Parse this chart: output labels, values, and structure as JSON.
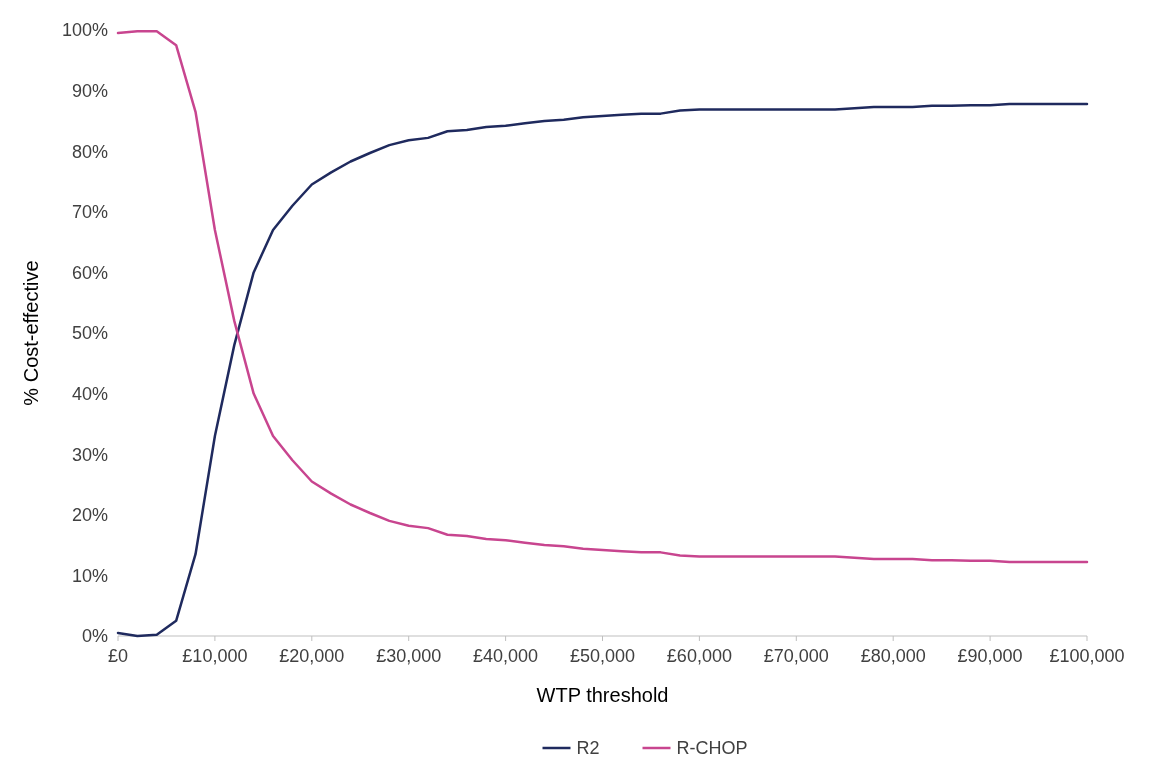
{
  "chart_data": {
    "type": "line",
    "xlabel": "WTP threshold",
    "ylabel": "% Cost-effective",
    "x": [
      0,
      2000,
      4000,
      6000,
      8000,
      10000,
      12000,
      14000,
      16000,
      18000,
      20000,
      22000,
      24000,
      26000,
      28000,
      30000,
      32000,
      34000,
      36000,
      38000,
      40000,
      42000,
      44000,
      46000,
      48000,
      50000,
      52000,
      54000,
      56000,
      58000,
      60000,
      62000,
      64000,
      66000,
      68000,
      70000,
      72000,
      74000,
      76000,
      78000,
      80000,
      82000,
      84000,
      86000,
      88000,
      90000,
      92000,
      94000,
      96000,
      98000,
      100000
    ],
    "series": [
      {
        "name": "R2",
        "color": "#1f2a5e",
        "values": [
          0.5,
          0,
          0.2,
          2.5,
          13.5,
          33,
          48,
          60,
          67,
          71,
          74.5,
          76.5,
          78.3,
          79.7,
          81,
          81.8,
          82.2,
          83.3,
          83.5,
          84,
          84.2,
          84.6,
          85,
          85.2,
          85.6,
          85.8,
          86,
          86.2,
          86.2,
          86.7,
          86.9,
          86.9,
          86.9,
          86.9,
          86.9,
          86.9,
          86.9,
          86.9,
          87.1,
          87.3,
          87.3,
          87.3,
          87.5,
          87.5,
          87.6,
          87.6,
          87.8,
          87.8,
          87.8,
          87.8,
          87.8
        ]
      },
      {
        "name": "R-CHOP",
        "color": "#c8458f",
        "values": [
          99.5,
          99.8,
          99.8,
          97.5,
          86.5,
          67,
          52,
          40,
          33,
          29,
          25.5,
          23.5,
          21.7,
          20.3,
          19,
          18.2,
          17.8,
          16.7,
          16.5,
          16,
          15.8,
          15.4,
          15,
          14.8,
          14.4,
          14.2,
          14,
          13.8,
          13.8,
          13.3,
          13.1,
          13.1,
          13.1,
          13.1,
          13.1,
          13.1,
          13.1,
          13.1,
          12.9,
          12.7,
          12.7,
          12.7,
          12.5,
          12.5,
          12.4,
          12.4,
          12.2,
          12.2,
          12.2,
          12.2,
          12.2
        ]
      }
    ],
    "xlim": [
      0,
      100000
    ],
    "xticks": [
      {
        "value": 0,
        "label": "£0"
      },
      {
        "value": 10000,
        "label": "£10,000"
      },
      {
        "value": 20000,
        "label": "£20,000"
      },
      {
        "value": 30000,
        "label": "£30,000"
      },
      {
        "value": 40000,
        "label": "£40,000"
      },
      {
        "value": 50000,
        "label": "£50,000"
      },
      {
        "value": 60000,
        "label": "£60,000"
      },
      {
        "value": 70000,
        "label": "£70,000"
      },
      {
        "value": 80000,
        "label": "£80,000"
      },
      {
        "value": 90000,
        "label": "£90,000"
      },
      {
        "value": 100000,
        "label": "£100,000"
      }
    ],
    "ylim": [
      0,
      100
    ],
    "yticks": [
      {
        "value": 0,
        "label": "0%"
      },
      {
        "value": 10,
        "label": "10%"
      },
      {
        "value": 20,
        "label": "20%"
      },
      {
        "value": 30,
        "label": "30%"
      },
      {
        "value": 40,
        "label": "40%"
      },
      {
        "value": 50,
        "label": "50%"
      },
      {
        "value": 60,
        "label": "60%"
      },
      {
        "value": 70,
        "label": "70%"
      },
      {
        "value": 80,
        "label": "80%"
      },
      {
        "value": 90,
        "label": "90%"
      },
      {
        "value": 100,
        "label": "100%"
      }
    ],
    "grid": false,
    "legend": "bottom",
    "marker": "none",
    "line_style": "solid"
  }
}
